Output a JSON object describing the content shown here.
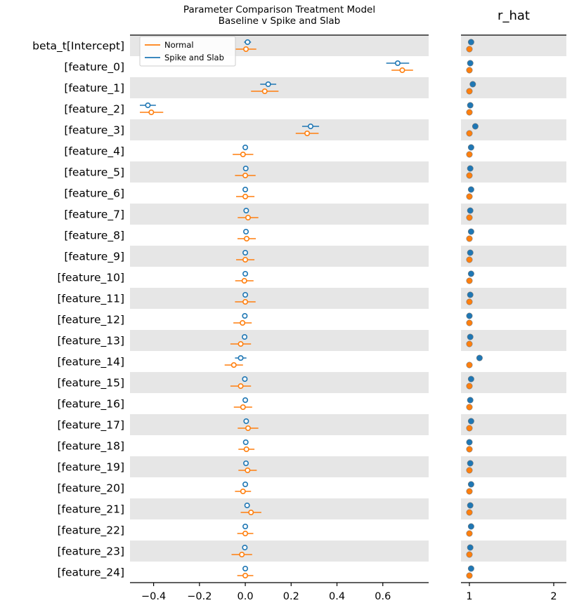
{
  "figure": {
    "title_line1": "Parameter Comparison Treatment Model",
    "title_line2": "Baseline v Spike and Slab",
    "right_title": "r_hat"
  },
  "colors": {
    "normal": "#ff7f0e",
    "spike": "#1f77b4",
    "band": "#e6e6e6",
    "spine": "#000000"
  },
  "legend": {
    "items": [
      {
        "label": "Normal",
        "color_key": "normal"
      },
      {
        "label": "Spike and Slab",
        "color_key": "spike"
      }
    ]
  },
  "chart_data": {
    "type": "forest",
    "title": "Parameter Comparison Treatment Model\nBaseline v Spike and Slab",
    "legend_position": "upper-left",
    "grid": false,
    "series_names": [
      "Normal",
      "Spike and Slab"
    ],
    "panels": [
      {
        "name": "estimate",
        "title": "",
        "xlim": [
          -0.503,
          0.8
        ],
        "xticks": [
          {
            "v": -0.4,
            "label": "−0.4"
          },
          {
            "v": -0.2,
            "label": "−0.2"
          },
          {
            "v": 0.0,
            "label": "0.0"
          },
          {
            "v": 0.2,
            "label": "0.2"
          },
          {
            "v": 0.4,
            "label": "0.4"
          },
          {
            "v": 0.6,
            "label": "0.6"
          }
        ]
      },
      {
        "name": "r_hat",
        "title": "r_hat",
        "xlim": [
          0.9,
          2.15
        ],
        "xticks": [
          {
            "v": 1,
            "label": "1"
          },
          {
            "v": 2,
            "label": "2"
          }
        ]
      }
    ],
    "rows": [
      {
        "label": "beta_t[Intercept]",
        "spike": {
          "mean": 0.01,
          "lo": -0.005,
          "hi": 0.025,
          "r_hat": 1.02
        },
        "normal": {
          "mean": 0.003,
          "lo": -0.042,
          "hi": 0.048,
          "r_hat": 1.0
        }
      },
      {
        "label": "[feature_0]",
        "spike": {
          "mean": 0.665,
          "lo": 0.615,
          "hi": 0.715,
          "r_hat": 1.01
        },
        "normal": {
          "mean": 0.685,
          "lo": 0.638,
          "hi": 0.732,
          "r_hat": 1.0
        }
      },
      {
        "label": "[feature_1]",
        "spike": {
          "mean": 0.1,
          "lo": 0.065,
          "hi": 0.135,
          "r_hat": 1.04
        },
        "normal": {
          "mean": 0.085,
          "lo": 0.025,
          "hi": 0.145,
          "r_hat": 1.0
        }
      },
      {
        "label": "[feature_2]",
        "spike": {
          "mean": -0.425,
          "lo": -0.46,
          "hi": -0.39,
          "r_hat": 1.01
        },
        "normal": {
          "mean": -0.41,
          "lo": -0.46,
          "hi": -0.358,
          "r_hat": 1.0
        }
      },
      {
        "label": "[feature_3]",
        "spike": {
          "mean": 0.285,
          "lo": 0.248,
          "hi": 0.322,
          "r_hat": 1.07
        },
        "normal": {
          "mean": 0.27,
          "lo": 0.22,
          "hi": 0.32,
          "r_hat": 1.0
        }
      },
      {
        "label": "[feature_4]",
        "spike": {
          "mean": 0.0,
          "lo": -0.006,
          "hi": 0.006,
          "r_hat": 1.02
        },
        "normal": {
          "mean": -0.01,
          "lo": -0.055,
          "hi": 0.035,
          "r_hat": 1.0
        }
      },
      {
        "label": "[feature_5]",
        "spike": {
          "mean": 0.002,
          "lo": -0.004,
          "hi": 0.008,
          "r_hat": 1.01
        },
        "normal": {
          "mean": 0.0,
          "lo": -0.045,
          "hi": 0.045,
          "r_hat": 1.0
        }
      },
      {
        "label": "[feature_6]",
        "spike": {
          "mean": 0.0,
          "lo": -0.005,
          "hi": 0.005,
          "r_hat": 1.02
        },
        "normal": {
          "mean": 0.0,
          "lo": -0.04,
          "hi": 0.04,
          "r_hat": 1.0
        }
      },
      {
        "label": "[feature_7]",
        "spike": {
          "mean": 0.004,
          "lo": -0.002,
          "hi": 0.01,
          "r_hat": 1.01
        },
        "normal": {
          "mean": 0.012,
          "lo": -0.033,
          "hi": 0.057,
          "r_hat": 1.0
        }
      },
      {
        "label": "[feature_8]",
        "spike": {
          "mean": 0.003,
          "lo": -0.003,
          "hi": 0.009,
          "r_hat": 1.02
        },
        "normal": {
          "mean": 0.006,
          "lo": -0.034,
          "hi": 0.046,
          "r_hat": 1.0
        }
      },
      {
        "label": "[feature_9]",
        "spike": {
          "mean": 0.0,
          "lo": -0.005,
          "hi": 0.005,
          "r_hat": 1.01
        },
        "normal": {
          "mean": 0.0,
          "lo": -0.04,
          "hi": 0.04,
          "r_hat": 1.0
        }
      },
      {
        "label": "[feature_10]",
        "spike": {
          "mean": 0.0,
          "lo": -0.005,
          "hi": 0.005,
          "r_hat": 1.02
        },
        "normal": {
          "mean": -0.004,
          "lo": -0.044,
          "hi": 0.036,
          "r_hat": 1.0
        }
      },
      {
        "label": "[feature_11]",
        "spike": {
          "mean": 0.0,
          "lo": -0.005,
          "hi": 0.005,
          "r_hat": 1.01
        },
        "normal": {
          "mean": 0.0,
          "lo": -0.045,
          "hi": 0.045,
          "r_hat": 1.0
        }
      },
      {
        "label": "[feature_12]",
        "spike": {
          "mean": -0.002,
          "lo": -0.008,
          "hi": 0.004,
          "r_hat": 1.0
        },
        "normal": {
          "mean": -0.012,
          "lo": -0.052,
          "hi": 0.028,
          "r_hat": 1.0
        }
      },
      {
        "label": "[feature_13]",
        "spike": {
          "mean": -0.003,
          "lo": -0.009,
          "hi": 0.003,
          "r_hat": 1.01
        },
        "normal": {
          "mean": -0.02,
          "lo": -0.065,
          "hi": 0.025,
          "r_hat": 1.0
        }
      },
      {
        "label": "[feature_14]",
        "spike": {
          "mean": -0.02,
          "lo": -0.045,
          "hi": 0.005,
          "r_hat": 1.12
        },
        "normal": {
          "mean": -0.05,
          "lo": -0.09,
          "hi": -0.01,
          "r_hat": 1.0
        }
      },
      {
        "label": "[feature_15]",
        "spike": {
          "mean": -0.002,
          "lo": -0.008,
          "hi": 0.004,
          "r_hat": 1.02
        },
        "normal": {
          "mean": -0.02,
          "lo": -0.065,
          "hi": 0.025,
          "r_hat": 1.0
        }
      },
      {
        "label": "[feature_16]",
        "spike": {
          "mean": 0.0,
          "lo": -0.005,
          "hi": 0.005,
          "r_hat": 1.01
        },
        "normal": {
          "mean": -0.01,
          "lo": -0.05,
          "hi": 0.03,
          "r_hat": 1.0
        }
      },
      {
        "label": "[feature_17]",
        "spike": {
          "mean": 0.004,
          "lo": -0.002,
          "hi": 0.01,
          "r_hat": 1.02
        },
        "normal": {
          "mean": 0.012,
          "lo": -0.033,
          "hi": 0.057,
          "r_hat": 1.0
        }
      },
      {
        "label": "[feature_18]",
        "spike": {
          "mean": 0.002,
          "lo": -0.004,
          "hi": 0.008,
          "r_hat": 1.0
        },
        "normal": {
          "mean": 0.005,
          "lo": -0.03,
          "hi": 0.04,
          "r_hat": 1.0
        }
      },
      {
        "label": "[feature_19]",
        "spike": {
          "mean": 0.003,
          "lo": -0.003,
          "hi": 0.009,
          "r_hat": 1.01
        },
        "normal": {
          "mean": 0.01,
          "lo": -0.03,
          "hi": 0.05,
          "r_hat": 1.0
        }
      },
      {
        "label": "[feature_20]",
        "spike": {
          "mean": 0.0,
          "lo": -0.005,
          "hi": 0.005,
          "r_hat": 1.02
        },
        "normal": {
          "mean": -0.01,
          "lo": -0.045,
          "hi": 0.025,
          "r_hat": 1.0
        }
      },
      {
        "label": "[feature_21]",
        "spike": {
          "mean": 0.008,
          "lo": 0.002,
          "hi": 0.014,
          "r_hat": 1.01
        },
        "normal": {
          "mean": 0.025,
          "lo": -0.02,
          "hi": 0.07,
          "r_hat": 1.0
        }
      },
      {
        "label": "[feature_22]",
        "spike": {
          "mean": 0.0,
          "lo": -0.005,
          "hi": 0.005,
          "r_hat": 1.02
        },
        "normal": {
          "mean": 0.0,
          "lo": -0.035,
          "hi": 0.035,
          "r_hat": 1.0
        }
      },
      {
        "label": "[feature_23]",
        "spike": {
          "mean": -0.002,
          "lo": -0.008,
          "hi": 0.004,
          "r_hat": 1.01
        },
        "normal": {
          "mean": -0.015,
          "lo": -0.06,
          "hi": 0.03,
          "r_hat": 1.0
        }
      },
      {
        "label": "[feature_24]",
        "spike": {
          "mean": 0.0,
          "lo": -0.005,
          "hi": 0.005,
          "r_hat": 1.02
        },
        "normal": {
          "mean": 0.0,
          "lo": -0.035,
          "hi": 0.035,
          "r_hat": 1.0
        }
      }
    ]
  }
}
